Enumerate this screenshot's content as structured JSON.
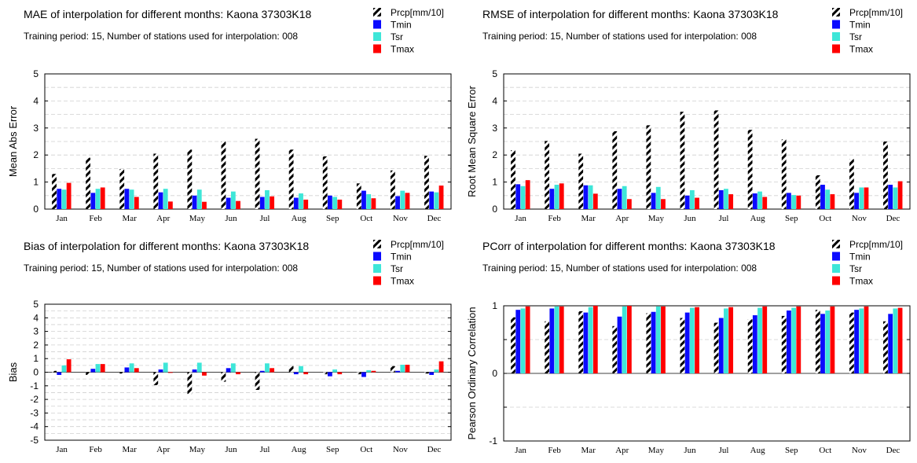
{
  "colors": {
    "Tmin": "#0a0aff",
    "Tsr": "#3ee6d8",
    "Tmax": "#ff0000",
    "Prcp": "hatch-black-white",
    "grid": "#d0d0d0"
  },
  "chart_data": [
    {
      "type": "bar",
      "title": "MAE of interpolation for different months: Kaona  37303K18",
      "subtitle": "Training period: 15, Number of stations used for interpolation: 008",
      "xlabel": "",
      "ylabel": "Mean Abs Error",
      "ylim": [
        0,
        5
      ],
      "yticks": [
        0,
        1,
        2,
        3,
        4,
        5
      ],
      "yticklabels": [
        "0",
        "1",
        "2",
        "3",
        "4",
        "5"
      ],
      "grid": true,
      "legend": "top-right",
      "categories": [
        "Jan",
        "Feb",
        "Mar",
        "Apr",
        "May",
        "Jun",
        "Jul",
        "Aug",
        "Sep",
        "Oct",
        "Nov",
        "Dec"
      ],
      "series": [
        {
          "name": "Prcp[mm/10]",
          "values": [
            1.3,
            1.9,
            1.48,
            2.05,
            2.2,
            2.5,
            2.6,
            2.2,
            1.95,
            0.95,
            1.43,
            1.97
          ]
        },
        {
          "name": "Tmin",
          "values": [
            0.75,
            0.6,
            0.75,
            0.62,
            0.5,
            0.42,
            0.45,
            0.42,
            0.5,
            0.68,
            0.48,
            0.65
          ]
        },
        {
          "name": "Tsr",
          "values": [
            0.72,
            0.75,
            0.72,
            0.75,
            0.72,
            0.65,
            0.7,
            0.58,
            0.45,
            0.55,
            0.68,
            0.62
          ]
        },
        {
          "name": "Tmax",
          "values": [
            0.97,
            0.8,
            0.45,
            0.28,
            0.27,
            0.3,
            0.47,
            0.35,
            0.35,
            0.4,
            0.6,
            0.87
          ]
        }
      ]
    },
    {
      "type": "bar",
      "title": "RMSE of interpolation for different months: Kaona  37303K18",
      "subtitle": "Training period: 15, Number of stations used for interpolation: 008",
      "xlabel": "",
      "ylabel": "Root Mean Square Error",
      "ylim": [
        0,
        5
      ],
      "yticks": [
        0,
        1,
        2,
        3,
        4,
        5
      ],
      "yticklabels": [
        "0",
        "1",
        "2",
        "3",
        "4",
        "5"
      ],
      "grid": true,
      "legend": "top-right",
      "categories": [
        "Jan",
        "Feb",
        "Mar",
        "Apr",
        "May",
        "Jun",
        "Jul",
        "Aug",
        "Sep",
        "Oct",
        "Nov",
        "Dec"
      ],
      "series": [
        {
          "name": "Prcp[mm/10]",
          "values": [
            2.18,
            2.52,
            2.05,
            2.88,
            3.1,
            3.6,
            3.65,
            2.93,
            2.58,
            1.25,
            1.85,
            2.5
          ]
        },
        {
          "name": "Tmin",
          "values": [
            0.92,
            0.75,
            0.88,
            0.75,
            0.6,
            0.5,
            0.7,
            0.58,
            0.6,
            0.9,
            0.6,
            0.9
          ]
        },
        {
          "name": "Tsr",
          "values": [
            0.85,
            0.9,
            0.88,
            0.85,
            0.82,
            0.7,
            0.75,
            0.65,
            0.52,
            0.72,
            0.8,
            0.8
          ]
        },
        {
          "name": "Tmax",
          "values": [
            1.07,
            0.95,
            0.57,
            0.37,
            0.37,
            0.42,
            0.55,
            0.45,
            0.5,
            0.55,
            0.8,
            1.03
          ]
        }
      ]
    },
    {
      "type": "bar",
      "title": "Bias of interpolation for different months: Kaona  37303K18",
      "subtitle": "Training period: 15, Number of stations used for interpolation: 008",
      "xlabel": "",
      "ylabel": "Bias",
      "ylim": [
        -5,
        5
      ],
      "yticks": [
        -5,
        -4,
        -3,
        -2,
        -1,
        0,
        1,
        2,
        3,
        4,
        5
      ],
      "yticklabels": [
        "-5",
        "-4",
        "-3",
        "-2",
        "-1",
        "0",
        "1",
        "2",
        "3",
        "4",
        "5"
      ],
      "grid": true,
      "legend": "top-right",
      "categories": [
        "Jan",
        "Feb",
        "Mar",
        "Apr",
        "May",
        "Jun",
        "Jul",
        "Aug",
        "Sep",
        "Oct",
        "Nov",
        "Dec"
      ],
      "series": [
        {
          "name": "Prcp[mm/10]",
          "values": [
            0.1,
            -0.2,
            -0.1,
            -0.95,
            -1.6,
            -0.7,
            -1.3,
            0.45,
            -0.15,
            -0.15,
            0.45,
            -0.1
          ]
        },
        {
          "name": "Tmin",
          "values": [
            -0.2,
            0.25,
            0.35,
            0.2,
            0.2,
            0.3,
            0.1,
            -0.15,
            -0.3,
            -0.35,
            0.1,
            -0.2
          ]
        },
        {
          "name": "Tsr",
          "values": [
            0.5,
            0.6,
            0.65,
            0.7,
            0.7,
            0.65,
            0.65,
            0.45,
            0.2,
            0.15,
            0.55,
            0.2
          ]
        },
        {
          "name": "Tmax",
          "values": [
            0.95,
            0.6,
            0.3,
            -0.05,
            -0.25,
            -0.15,
            0.3,
            -0.15,
            -0.15,
            0.1,
            0.55,
            0.8
          ]
        }
      ]
    },
    {
      "type": "bar",
      "title": "PCorr of interpolation for different months: Kaona  37303K18",
      "subtitle": "Training period: 15, Number of stations used for interpolation: 008",
      "xlabel": "",
      "ylabel": "Pearson Ordinary Correlation",
      "ylim": [
        -1,
        1
      ],
      "yticks": [
        -1,
        -0.5,
        0,
        0.5,
        1
      ],
      "yticklabels": [
        "-1",
        "",
        "0",
        "",
        "1"
      ],
      "grid": true,
      "legend": "top-right",
      "categories": [
        "Jan",
        "Feb",
        "Mar",
        "Apr",
        "May",
        "Jun",
        "Jul",
        "Aug",
        "Sep",
        "Oct",
        "Nov",
        "Dec"
      ],
      "series": [
        {
          "name": "Prcp[mm/10]",
          "values": [
            0.83,
            0.77,
            0.92,
            0.7,
            0.89,
            0.82,
            0.75,
            0.8,
            0.85,
            0.94,
            0.9,
            0.77
          ]
        },
        {
          "name": "Tmin",
          "values": [
            0.94,
            0.96,
            0.9,
            0.84,
            0.91,
            0.9,
            0.82,
            0.86,
            0.93,
            0.88,
            0.94,
            0.88
          ]
        },
        {
          "name": "Tsr",
          "values": [
            0.96,
            0.99,
            0.98,
            0.99,
            0.99,
            0.97,
            0.96,
            0.97,
            0.97,
            0.93,
            0.96,
            0.96
          ]
        },
        {
          "name": "Tmax",
          "values": [
            0.99,
            0.99,
            1.0,
            1.0,
            0.99,
            0.98,
            0.98,
            0.99,
            0.99,
            0.99,
            0.99,
            0.97
          ]
        }
      ]
    }
  ]
}
